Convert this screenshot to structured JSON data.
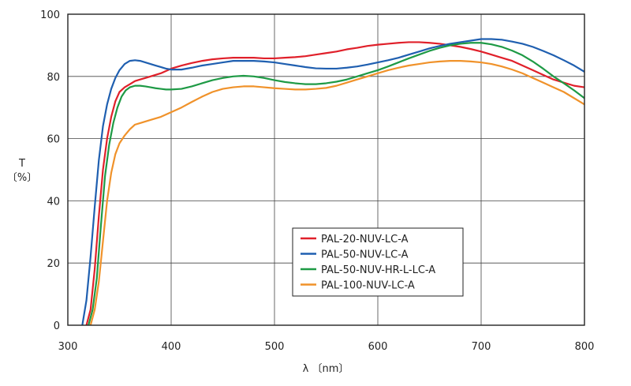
{
  "chart_data": {
    "type": "line",
    "title": "",
    "xlabel": "λ 〔nm〕",
    "ylabel_line1": "T",
    "ylabel_line2": "〔%〕",
    "xlim": [
      300,
      800
    ],
    "ylim": [
      0,
      100
    ],
    "xticks": [
      300,
      400,
      500,
      600,
      700,
      800
    ],
    "yticks": [
      0,
      20,
      40,
      60,
      80,
      100
    ],
    "grid": true,
    "legend_position": "lower-right",
    "series": [
      {
        "name": "PAL-20-NUV-LC-A",
        "color": "#e0202a",
        "points": [
          [
            318,
            0
          ],
          [
            322,
            5
          ],
          [
            326,
            18
          ],
          [
            330,
            35
          ],
          [
            334,
            50
          ],
          [
            338,
            60
          ],
          [
            342,
            67
          ],
          [
            346,
            72
          ],
          [
            350,
            75
          ],
          [
            355,
            76.5
          ],
          [
            360,
            77.5
          ],
          [
            365,
            78.5
          ],
          [
            370,
            79
          ],
          [
            375,
            79.5
          ],
          [
            380,
            80
          ],
          [
            390,
            81
          ],
          [
            400,
            82.5
          ],
          [
            410,
            83.5
          ],
          [
            420,
            84.3
          ],
          [
            430,
            85
          ],
          [
            440,
            85.5
          ],
          [
            450,
            85.8
          ],
          [
            460,
            86
          ],
          [
            470,
            86
          ],
          [
            480,
            86
          ],
          [
            490,
            85.8
          ],
          [
            500,
            85.8
          ],
          [
            510,
            86
          ],
          [
            520,
            86.2
          ],
          [
            530,
            86.5
          ],
          [
            540,
            87
          ],
          [
            550,
            87.5
          ],
          [
            560,
            88
          ],
          [
            570,
            88.7
          ],
          [
            580,
            89.2
          ],
          [
            590,
            89.8
          ],
          [
            600,
            90.2
          ],
          [
            610,
            90.5
          ],
          [
            620,
            90.8
          ],
          [
            630,
            91
          ],
          [
            640,
            91
          ],
          [
            650,
            90.8
          ],
          [
            660,
            90.5
          ],
          [
            670,
            90
          ],
          [
            680,
            89.5
          ],
          [
            690,
            88.8
          ],
          [
            700,
            88
          ],
          [
            710,
            87
          ],
          [
            720,
            86
          ],
          [
            730,
            85
          ],
          [
            740,
            83.5
          ],
          [
            750,
            82
          ],
          [
            760,
            80.5
          ],
          [
            770,
            79
          ],
          [
            780,
            78
          ],
          [
            790,
            77
          ],
          [
            800,
            76.5
          ]
        ]
      },
      {
        "name": "PAL-50-NUV-LC-A",
        "color": "#1f5fb0",
        "points": [
          [
            314,
            0
          ],
          [
            318,
            8
          ],
          [
            322,
            22
          ],
          [
            326,
            38
          ],
          [
            330,
            53
          ],
          [
            334,
            64
          ],
          [
            338,
            71
          ],
          [
            342,
            76
          ],
          [
            346,
            79.5
          ],
          [
            350,
            82
          ],
          [
            355,
            84
          ],
          [
            360,
            85
          ],
          [
            365,
            85.2
          ],
          [
            370,
            85
          ],
          [
            375,
            84.5
          ],
          [
            380,
            84
          ],
          [
            385,
            83.5
          ],
          [
            390,
            83
          ],
          [
            395,
            82.5
          ],
          [
            400,
            82.2
          ],
          [
            410,
            82.2
          ],
          [
            420,
            82.8
          ],
          [
            430,
            83.5
          ],
          [
            440,
            84
          ],
          [
            450,
            84.5
          ],
          [
            460,
            85
          ],
          [
            470,
            85
          ],
          [
            480,
            85
          ],
          [
            490,
            84.8
          ],
          [
            500,
            84.5
          ],
          [
            510,
            84
          ],
          [
            520,
            83.5
          ],
          [
            530,
            83
          ],
          [
            540,
            82.6
          ],
          [
            550,
            82.5
          ],
          [
            560,
            82.5
          ],
          [
            570,
            82.8
          ],
          [
            580,
            83.2
          ],
          [
            590,
            83.8
          ],
          [
            600,
            84.5
          ],
          [
            610,
            85.2
          ],
          [
            620,
            86
          ],
          [
            630,
            87
          ],
          [
            640,
            88
          ],
          [
            650,
            89
          ],
          [
            660,
            89.8
          ],
          [
            670,
            90.5
          ],
          [
            680,
            91
          ],
          [
            690,
            91.5
          ],
          [
            700,
            92
          ],
          [
            710,
            92
          ],
          [
            720,
            91.8
          ],
          [
            730,
            91.2
          ],
          [
            740,
            90.5
          ],
          [
            750,
            89.5
          ],
          [
            760,
            88.2
          ],
          [
            770,
            86.8
          ],
          [
            780,
            85.2
          ],
          [
            790,
            83.5
          ],
          [
            800,
            81.5
          ]
        ]
      },
      {
        "name": "PAL-50-NUV-HR-L-LC-A",
        "color": "#1e9a45",
        "points": [
          [
            320,
            0
          ],
          [
            324,
            5
          ],
          [
            328,
            15
          ],
          [
            332,
            32
          ],
          [
            336,
            48
          ],
          [
            340,
            58
          ],
          [
            344,
            65
          ],
          [
            348,
            70
          ],
          [
            352,
            73.5
          ],
          [
            356,
            75.5
          ],
          [
            360,
            76.5
          ],
          [
            365,
            77
          ],
          [
            370,
            77
          ],
          [
            375,
            76.8
          ],
          [
            380,
            76.5
          ],
          [
            385,
            76.2
          ],
          [
            390,
            76
          ],
          [
            395,
            75.8
          ],
          [
            400,
            75.8
          ],
          [
            410,
            76
          ],
          [
            420,
            76.8
          ],
          [
            430,
            77.8
          ],
          [
            440,
            78.8
          ],
          [
            450,
            79.5
          ],
          [
            460,
            80
          ],
          [
            470,
            80.2
          ],
          [
            480,
            80
          ],
          [
            490,
            79.5
          ],
          [
            500,
            78.8
          ],
          [
            510,
            78.2
          ],
          [
            520,
            77.8
          ],
          [
            530,
            77.5
          ],
          [
            540,
            77.5
          ],
          [
            550,
            77.8
          ],
          [
            560,
            78.3
          ],
          [
            570,
            79
          ],
          [
            580,
            80
          ],
          [
            590,
            81
          ],
          [
            600,
            82
          ],
          [
            610,
            83.2
          ],
          [
            620,
            84.5
          ],
          [
            630,
            85.8
          ],
          [
            640,
            87
          ],
          [
            650,
            88.2
          ],
          [
            660,
            89.2
          ],
          [
            670,
            90
          ],
          [
            680,
            90.5
          ],
          [
            690,
            90.8
          ],
          [
            700,
            90.8
          ],
          [
            710,
            90.3
          ],
          [
            720,
            89.5
          ],
          [
            730,
            88.3
          ],
          [
            740,
            86.8
          ],
          [
            750,
            84.8
          ],
          [
            760,
            82.5
          ],
          [
            770,
            80
          ],
          [
            780,
            77.8
          ],
          [
            790,
            75.5
          ],
          [
            800,
            73
          ]
        ]
      },
      {
        "name": "PAL-100-NUV-LC-A",
        "color": "#f0922a",
        "points": [
          [
            322,
            0
          ],
          [
            326,
            5
          ],
          [
            330,
            14
          ],
          [
            334,
            27
          ],
          [
            338,
            40
          ],
          [
            342,
            49
          ],
          [
            346,
            55
          ],
          [
            350,
            58.5
          ],
          [
            355,
            61
          ],
          [
            360,
            63
          ],
          [
            365,
            64.5
          ],
          [
            370,
            65
          ],
          [
            375,
            65.5
          ],
          [
            380,
            66
          ],
          [
            390,
            67
          ],
          [
            400,
            68.5
          ],
          [
            410,
            70
          ],
          [
            420,
            71.8
          ],
          [
            430,
            73.5
          ],
          [
            440,
            75
          ],
          [
            450,
            76
          ],
          [
            460,
            76.5
          ],
          [
            470,
            76.8
          ],
          [
            480,
            76.8
          ],
          [
            490,
            76.5
          ],
          [
            500,
            76.2
          ],
          [
            510,
            76
          ],
          [
            520,
            75.8
          ],
          [
            530,
            75.8
          ],
          [
            540,
            76
          ],
          [
            550,
            76.3
          ],
          [
            560,
            77
          ],
          [
            570,
            78
          ],
          [
            580,
            79
          ],
          [
            590,
            80
          ],
          [
            600,
            81
          ],
          [
            610,
            82
          ],
          [
            620,
            82.8
          ],
          [
            630,
            83.5
          ],
          [
            640,
            84
          ],
          [
            650,
            84.5
          ],
          [
            660,
            84.8
          ],
          [
            670,
            85
          ],
          [
            680,
            85
          ],
          [
            690,
            84.8
          ],
          [
            700,
            84.5
          ],
          [
            710,
            84
          ],
          [
            720,
            83.2
          ],
          [
            730,
            82.2
          ],
          [
            740,
            81
          ],
          [
            750,
            79.5
          ],
          [
            760,
            78
          ],
          [
            770,
            76.5
          ],
          [
            780,
            75
          ],
          [
            790,
            73
          ],
          [
            800,
            71
          ]
        ]
      }
    ]
  }
}
